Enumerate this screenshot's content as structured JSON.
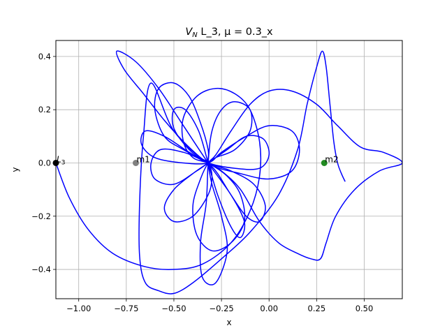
{
  "chart_data": {
    "type": "line",
    "title_italic": "V",
    "title_sub": "N",
    "title_rest": " L_3, μ = 0.3_x",
    "xlabel": "x",
    "ylabel": "y",
    "xlim": [
      -1.12,
      0.7
    ],
    "ylim": [
      -0.51,
      0.46
    ],
    "xticks": [
      -1.0,
      -0.75,
      -0.5,
      -0.25,
      0.0,
      0.25,
      0.5
    ],
    "xtick_labels": [
      "−1.00",
      "−0.75",
      "−0.50",
      "−0.25",
      "0.00",
      "0.25",
      "0.50"
    ],
    "yticks": [
      -0.4,
      -0.2,
      0.0,
      0.2,
      0.4
    ],
    "ytick_labels": [
      "−0.4",
      "−0.2",
      "0.0",
      "0.2",
      "0.4"
    ],
    "grid": true,
    "series": [
      {
        "color": "#0000ff",
        "points": [
          [
            -1.12,
            0.0
          ],
          [
            -1.05,
            -0.13
          ],
          [
            -0.95,
            -0.25
          ],
          [
            -0.82,
            -0.34
          ],
          [
            -0.65,
            -0.39
          ],
          [
            -0.5,
            -0.4
          ],
          [
            -0.35,
            -0.38
          ],
          [
            -0.2,
            -0.3
          ],
          [
            -0.1,
            -0.18
          ],
          [
            -0.05,
            -0.05
          ],
          [
            -0.05,
            0.08
          ],
          [
            -0.1,
            0.2
          ],
          [
            -0.18,
            0.26
          ],
          [
            -0.28,
            0.28
          ],
          [
            -0.38,
            0.25
          ],
          [
            -0.45,
            0.17
          ],
          [
            -0.45,
            0.08
          ],
          [
            -0.4,
            0.02
          ],
          [
            -0.32,
            0.0
          ],
          [
            -0.25,
            -0.03
          ],
          [
            -0.15,
            -0.1
          ],
          [
            -0.05,
            -0.22
          ],
          [
            0.05,
            -0.3
          ],
          [
            0.15,
            -0.34
          ],
          [
            0.22,
            -0.36
          ],
          [
            0.27,
            -0.36
          ],
          [
            0.3,
            -0.3
          ],
          [
            0.35,
            -0.2
          ],
          [
            0.45,
            -0.1
          ],
          [
            0.58,
            -0.03
          ],
          [
            0.7,
            0.0
          ],
          [
            0.6,
            0.04
          ],
          [
            0.48,
            0.06
          ],
          [
            0.36,
            0.14
          ],
          [
            0.25,
            0.22
          ],
          [
            0.12,
            0.27
          ],
          [
            0.0,
            0.27
          ],
          [
            -0.1,
            0.22
          ],
          [
            -0.2,
            0.12
          ],
          [
            -0.28,
            0.03
          ],
          [
            -0.32,
            0.0
          ],
          [
            -0.36,
            -0.06
          ],
          [
            -0.4,
            -0.16
          ],
          [
            -0.38,
            -0.27
          ],
          [
            -0.3,
            -0.33
          ],
          [
            -0.2,
            -0.3
          ],
          [
            -0.13,
            -0.22
          ],
          [
            -0.15,
            -0.12
          ],
          [
            -0.22,
            -0.05
          ],
          [
            -0.32,
            0.0
          ],
          [
            -0.45,
            0.05
          ],
          [
            -0.55,
            0.1
          ],
          [
            -0.6,
            0.2
          ],
          [
            -0.58,
            0.28
          ],
          [
            -0.5,
            0.3
          ],
          [
            -0.42,
            0.25
          ],
          [
            -0.36,
            0.15
          ],
          [
            -0.32,
            0.05
          ],
          [
            -0.32,
            0.0
          ],
          [
            -0.3,
            -0.08
          ],
          [
            -0.25,
            -0.2
          ],
          [
            -0.22,
            -0.33
          ],
          [
            -0.28,
            -0.45
          ],
          [
            -0.35,
            -0.43
          ],
          [
            -0.36,
            -0.3
          ],
          [
            -0.33,
            -0.15
          ],
          [
            -0.32,
            0.0
          ],
          [
            -0.3,
            0.12
          ],
          [
            -0.25,
            0.2
          ],
          [
            -0.18,
            0.23
          ],
          [
            -0.1,
            0.2
          ],
          [
            -0.1,
            0.12
          ],
          [
            -0.18,
            0.05
          ],
          [
            -0.28,
            0.02
          ],
          [
            -0.32,
            0.0
          ],
          [
            -0.38,
            -0.03
          ],
          [
            -0.5,
            -0.08
          ],
          [
            -0.6,
            -0.06
          ],
          [
            -0.62,
            0.0
          ],
          [
            -0.57,
            0.05
          ],
          [
            -0.45,
            0.04
          ],
          [
            -0.35,
            0.01
          ],
          [
            -0.32,
            0.0
          ],
          [
            -0.27,
            -0.04
          ],
          [
            -0.2,
            -0.12
          ],
          [
            -0.12,
            -0.2
          ],
          [
            -0.05,
            -0.22
          ],
          [
            -0.02,
            -0.16
          ],
          [
            -0.08,
            -0.08
          ],
          [
            -0.2,
            -0.03
          ],
          [
            -0.32,
            0.0
          ],
          [
            -0.42,
            0.05
          ],
          [
            -0.5,
            0.13
          ],
          [
            -0.5,
            0.2
          ],
          [
            -0.44,
            0.2
          ],
          [
            -0.37,
            0.12
          ],
          [
            -0.32,
            0.0
          ],
          [
            -0.27,
            -0.12
          ],
          [
            -0.2,
            -0.24
          ],
          [
            -0.15,
            -0.28
          ],
          [
            -0.13,
            -0.22
          ],
          [
            -0.2,
            -0.12
          ],
          [
            -0.32,
            0.0
          ],
          [
            -0.45,
            0.14
          ],
          [
            -0.58,
            0.28
          ],
          [
            -0.7,
            0.38
          ],
          [
            -0.8,
            0.42
          ],
          [
            -0.76,
            0.35
          ],
          [
            -0.66,
            0.26
          ],
          [
            -0.55,
            0.16
          ],
          [
            -0.45,
            0.08
          ],
          [
            -0.36,
            0.02
          ],
          [
            -0.32,
            0.0
          ],
          [
            -0.3,
            -0.05
          ],
          [
            -0.32,
            -0.12
          ],
          [
            -0.4,
            -0.2
          ],
          [
            -0.5,
            -0.22
          ],
          [
            -0.55,
            -0.17
          ],
          [
            -0.5,
            -0.1
          ],
          [
            -0.4,
            -0.04
          ],
          [
            -0.32,
            0.0
          ],
          [
            -0.22,
            0.05
          ],
          [
            -0.12,
            0.1
          ],
          [
            -0.03,
            0.09
          ],
          [
            0.0,
            0.03
          ],
          [
            -0.05,
            -0.02
          ],
          [
            -0.18,
            -0.02
          ],
          [
            -0.32,
            0.0
          ],
          [
            -0.42,
            0.04
          ],
          [
            -0.55,
            0.1
          ],
          [
            -0.65,
            0.12
          ],
          [
            -0.67,
            0.07
          ],
          [
            -0.6,
            0.02
          ],
          [
            -0.45,
            0.0
          ],
          [
            -0.32,
            0.0
          ],
          [
            -0.25,
            0.04
          ],
          [
            -0.12,
            0.1
          ],
          [
            0.0,
            0.14
          ],
          [
            0.12,
            0.12
          ],
          [
            0.16,
            0.05
          ],
          [
            0.12,
            -0.03
          ],
          [
            0.0,
            -0.06
          ],
          [
            -0.15,
            -0.04
          ],
          [
            -0.32,
            0.0
          ],
          [
            -0.5,
            0.12
          ],
          [
            -0.62,
            0.3
          ],
          [
            -0.66,
            0.1
          ],
          [
            -0.68,
            -0.15
          ],
          [
            -0.68,
            -0.35
          ],
          [
            -0.65,
            -0.45
          ],
          [
            -0.58,
            -0.48
          ],
          [
            -0.5,
            -0.49
          ],
          [
            -0.4,
            -0.45
          ],
          [
            -0.25,
            -0.36
          ],
          [
            -0.1,
            -0.26
          ],
          [
            0.05,
            -0.12
          ],
          [
            0.15,
            0.05
          ],
          [
            0.2,
            0.22
          ],
          [
            0.25,
            0.36
          ],
          [
            0.28,
            0.42
          ],
          [
            0.3,
            0.36
          ],
          [
            0.32,
            0.22
          ],
          [
            0.34,
            0.08
          ],
          [
            0.36,
            0.0
          ],
          [
            0.38,
            -0.04
          ],
          [
            0.4,
            -0.07
          ]
        ]
      }
    ],
    "markers": [
      {
        "x": -1.12,
        "y": 0.0,
        "color": "#000000",
        "label": "L3"
      },
      {
        "x": -0.7,
        "y": 0.0,
        "color": "#808080",
        "label": "m1"
      },
      {
        "x": 0.29,
        "y": 0.0,
        "color": "#228b22",
        "label": "m2"
      }
    ]
  }
}
